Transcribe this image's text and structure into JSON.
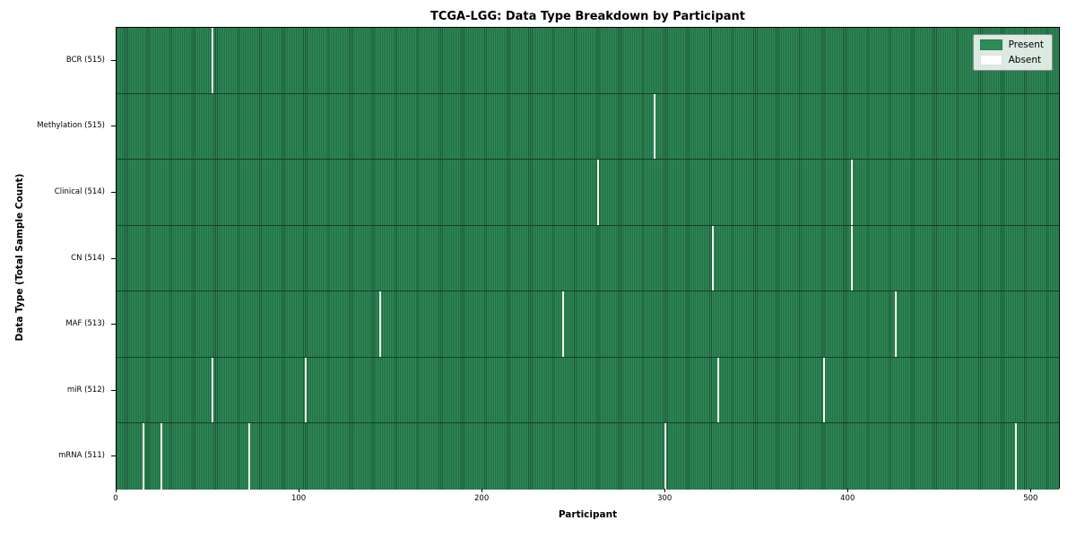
{
  "chart_data": {
    "type": "heatmap",
    "title": "TCGA-LGG: Data Type Breakdown by Participant",
    "xlabel": "Participant",
    "ylabel": "Data Type (Total Sample Count)",
    "x_ticks": [
      0,
      100,
      200,
      300,
      400,
      500
    ],
    "x_range": [
      0,
      516
    ],
    "total_participants": 516,
    "grid": false,
    "legend_position": "upper right",
    "legend": [
      {
        "label": "Present",
        "color": "#2e8b57"
      },
      {
        "label": "Absent",
        "color": "#ffffff"
      }
    ],
    "colors": {
      "present": "#2e8b57",
      "bar_edge": "#1b5236",
      "absent_line": "#f7f7f2",
      "row_separator": "#143f28"
    },
    "rows": [
      {
        "data_type": "BCR",
        "label": "BCR (515)",
        "present_count": 515,
        "absent_participants": [
          52
        ]
      },
      {
        "data_type": "Methylation",
        "label": "Methylation (515)",
        "present_count": 515,
        "absent_participants": [
          294
        ]
      },
      {
        "data_type": "Clinical",
        "label": "Clinical (514)",
        "present_count": 514,
        "absent_participants": [
          263,
          402
        ]
      },
      {
        "data_type": "CN",
        "label": "CN (514)",
        "present_count": 514,
        "absent_participants": [
          326,
          402
        ]
      },
      {
        "data_type": "MAF",
        "label": "MAF (513)",
        "present_count": 513,
        "absent_participants": [
          144,
          244,
          426
        ]
      },
      {
        "data_type": "miR",
        "label": "miR (512)",
        "present_count": 512,
        "absent_participants": [
          52,
          103,
          329,
          387
        ]
      },
      {
        "data_type": "mRNA",
        "label": "mRNA (511)",
        "present_count": 511,
        "absent_participants": [
          14,
          24,
          72,
          300,
          492
        ]
      }
    ]
  }
}
